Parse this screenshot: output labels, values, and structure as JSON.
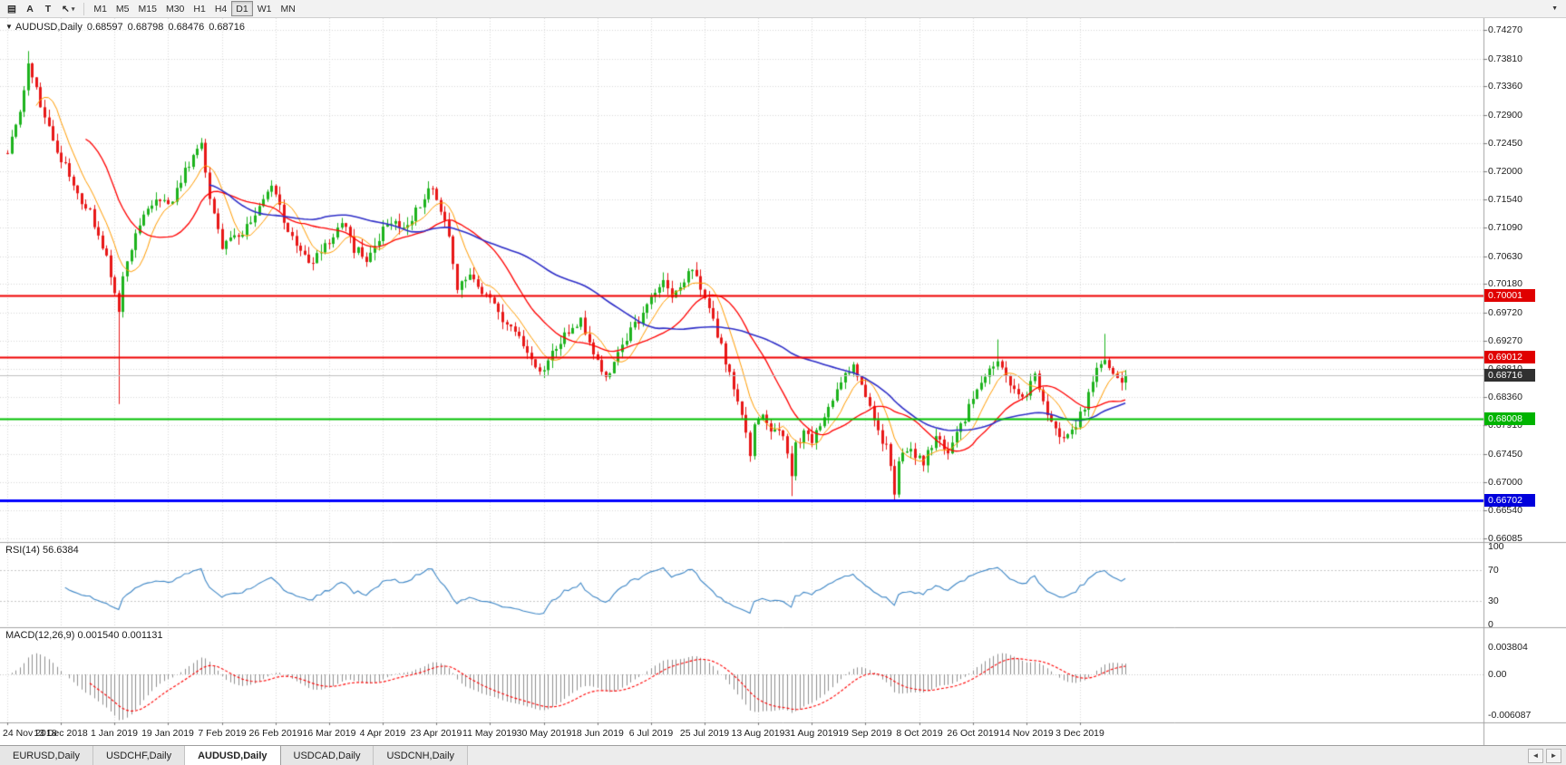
{
  "icons": {
    "symbol_dropdown": "▼",
    "caret": "▾",
    "overflow": "▼",
    "tab_scroll_left": "◄",
    "tab_scroll_right": "►"
  },
  "colors": {
    "up": "#1db31d",
    "down": "#e81717",
    "grid": "#d9d9d9",
    "ma_fast": "#ff9c00",
    "ma_mid": "#ff0000",
    "ma_slow": "#2e2ec8",
    "rsi_line": "#3d86c6",
    "rsi_level": "#c8c8c8",
    "macd_hist": "#8f8f8f",
    "macd_signal": "#ff0000",
    "axis_border": "#a3a3a3",
    "level_red": "#f00000",
    "level_green": "#00c000",
    "level_blue": "#0000ff",
    "current_price_line": "#c0c0c0"
  },
  "toolbar": {
    "tool_buttons": [
      {
        "name": "charts-list-button",
        "icon": "charts-list-icon",
        "glyph": "▤"
      },
      {
        "name": "text-annotation-button",
        "icon": "letter-a-icon",
        "glyph": "A"
      },
      {
        "name": "text-label-button",
        "icon": "letter-t-icon",
        "glyph": "T"
      },
      {
        "name": "cursor-tool-button",
        "icon": "cursor-icon",
        "glyph": "↖",
        "caret": true
      }
    ],
    "timeframes": [
      {
        "label": "M1",
        "active": false
      },
      {
        "label": "M5",
        "active": false
      },
      {
        "label": "M15",
        "active": false
      },
      {
        "label": "M30",
        "active": false
      },
      {
        "label": "H1",
        "active": false
      },
      {
        "label": "H4",
        "active": false
      },
      {
        "label": "D1",
        "active": true
      },
      {
        "label": "W1",
        "active": false
      },
      {
        "label": "MN",
        "active": false
      }
    ]
  },
  "chart": {
    "title": {
      "symbol": "AUDUSD,Daily",
      "open": "0.68597",
      "high": "0.68798",
      "low": "0.68476",
      "close": "0.68716"
    },
    "price_axis": [
      "0.74270",
      "0.73810",
      "0.73360",
      "0.72900",
      "0.72450",
      "0.72000",
      "0.71540",
      "0.71090",
      "0.70630",
      "0.70180",
      "0.69720",
      "0.69270",
      "0.68810",
      "0.68360",
      "0.67910",
      "0.67450",
      "0.67000",
      "0.66540",
      "0.66085"
    ],
    "date_axis": [
      "24 Nov 2018",
      "13 Dec 2018",
      "1 Jan 2019",
      "19 Jan 2019",
      "7 Feb 2019",
      "26 Feb 2019",
      "16 Mar 2019",
      "4 Apr 2019",
      "23 Apr 2019",
      "11 May 2019",
      "30 May 2019",
      "18 Jun 2019",
      "6 Jul 2019",
      "25 Jul 2019",
      "13 Aug 2019",
      "31 Aug 2019",
      "19 Sep 2019",
      "8 Oct 2019",
      "26 Oct 2019",
      "14 Nov 2019",
      "3 Dec 2019"
    ],
    "price_tags": [
      {
        "text": "0.70001",
        "bg": "#e00000",
        "name": "resistance-line-tag-1"
      },
      {
        "text": "0.69012",
        "bg": "#e00000",
        "name": "resistance-line-tag-2"
      },
      {
        "text": "0.68008",
        "bg": "#00b400",
        "name": "support-line-tag"
      },
      {
        "text": "0.66702",
        "bg": "#0000dc",
        "name": "key-low-line-tag"
      },
      {
        "text": "0.68716",
        "bg": "#303030",
        "name": "current-price-tag"
      }
    ],
    "hlines": [
      {
        "price": "0.70001",
        "color": "level_red",
        "width": 2
      },
      {
        "price": "0.69012",
        "color": "level_red",
        "width": 2
      },
      {
        "price": "0.68008",
        "color": "level_green",
        "width": 2
      },
      {
        "price": "0.66702",
        "color": "level_blue",
        "width": 3
      },
      {
        "price": "0.68716",
        "color": "current_price_line",
        "width": 1
      }
    ]
  },
  "indicators": {
    "rsi": {
      "label": "RSI(14) 56.6384",
      "current": 56.6384,
      "axis": [
        "100",
        "70",
        "30",
        "0"
      ],
      "levels": [
        70,
        30
      ]
    },
    "macd": {
      "label": "MACD(12,26,9) 0.001540 0.001131",
      "current_main": 0.00154,
      "current_signal": 0.001131,
      "axis": [
        "0.003804",
        "0.00",
        "-0.006087"
      ]
    }
  },
  "tabs": {
    "items": [
      {
        "label": "EURUSD,Daily",
        "active": false
      },
      {
        "label": "USDCHF,Daily",
        "active": false
      },
      {
        "label": "AUDUSD,Daily",
        "active": true
      },
      {
        "label": "USDCAD,Daily",
        "active": false
      },
      {
        "label": "USDCNH,Daily",
        "active": false
      }
    ]
  },
  "chart_data": {
    "type": "candlestick",
    "symbol": "AUDUSD",
    "timeframe": "Daily",
    "x_range": [
      "24 Nov 2018",
      "mid Dec 2019"
    ],
    "price_range_visible": [
      0.6614,
      0.7446
    ],
    "ohlc_current": {
      "open": 0.68597,
      "high": 0.68798,
      "low": 0.68476,
      "close": 0.68716
    },
    "num_candles": 272,
    "noise_seed": 11,
    "trend_points": [
      [
        0,
        0.7232
      ],
      [
        3,
        0.729
      ],
      [
        5,
        0.7375
      ],
      [
        7,
        0.733
      ],
      [
        10,
        0.7268
      ],
      [
        13,
        0.7218
      ],
      [
        17,
        0.7165
      ],
      [
        21,
        0.7118
      ],
      [
        24,
        0.7062
      ],
      [
        26,
        0.7012
      ],
      [
        27,
        0.6968
      ],
      [
        28,
        0.7022
      ],
      [
        30,
        0.7075
      ],
      [
        33,
        0.7128
      ],
      [
        36,
        0.7152
      ],
      [
        39,
        0.7148
      ],
      [
        42,
        0.7183
      ],
      [
        45,
        0.7228
      ],
      [
        47,
        0.7243
      ],
      [
        49,
        0.7152
      ],
      [
        52,
        0.7078
      ],
      [
        55,
        0.7088
      ],
      [
        58,
        0.7112
      ],
      [
        61,
        0.715
      ],
      [
        64,
        0.7183
      ],
      [
        67,
        0.7122
      ],
      [
        70,
        0.7078
      ],
      [
        73,
        0.7052
      ],
      [
        76,
        0.7066
      ],
      [
        78,
        0.7086
      ],
      [
        81,
        0.7114
      ],
      [
        84,
        0.7076
      ],
      [
        87,
        0.7056
      ],
      [
        89,
        0.708
      ],
      [
        91,
        0.7104
      ],
      [
        94,
        0.712
      ],
      [
        97,
        0.7106
      ],
      [
        100,
        0.7148
      ],
      [
        103,
        0.7174
      ],
      [
        105,
        0.714
      ],
      [
        107,
        0.7092
      ],
      [
        109,
        0.7016
      ],
      [
        112,
        0.703
      ],
      [
        115,
        0.7006
      ],
      [
        117,
        0.6992
      ],
      [
        120,
        0.6956
      ],
      [
        123,
        0.6936
      ],
      [
        126,
        0.6906
      ],
      [
        129,
        0.6876
      ],
      [
        131,
        0.69
      ],
      [
        134,
        0.6924
      ],
      [
        137,
        0.695
      ],
      [
        139,
        0.696
      ],
      [
        141,
        0.6926
      ],
      [
        143,
        0.6896
      ],
      [
        145,
        0.6868
      ],
      [
        147,
        0.6896
      ],
      [
        150,
        0.693
      ],
      [
        153,
        0.696
      ],
      [
        156,
        0.6994
      ],
      [
        159,
        0.7028
      ],
      [
        161,
        0.6996
      ],
      [
        163,
        0.7014
      ],
      [
        165,
        0.7044
      ],
      [
        167,
        0.7022
      ],
      [
        169,
        0.6996
      ],
      [
        171,
        0.696
      ],
      [
        173,
        0.6916
      ],
      [
        175,
        0.687
      ],
      [
        177,
        0.6822
      ],
      [
        179,
        0.6776
      ],
      [
        180,
        0.6742
      ],
      [
        181,
        0.6786
      ],
      [
        183,
        0.68
      ],
      [
        185,
        0.6772
      ],
      [
        187,
        0.6786
      ],
      [
        189,
        0.6746
      ],
      [
        190,
        0.6702
      ],
      [
        191,
        0.6756
      ],
      [
        193,
        0.6776
      ],
      [
        195,
        0.6766
      ],
      [
        197,
        0.679
      ],
      [
        199,
        0.682
      ],
      [
        201,
        0.6846
      ],
      [
        203,
        0.6866
      ],
      [
        205,
        0.688
      ],
      [
        207,
        0.685
      ],
      [
        209,
        0.6816
      ],
      [
        211,
        0.678
      ],
      [
        213,
        0.6756
      ],
      [
        214,
        0.6722
      ],
      [
        215,
        0.6686
      ],
      [
        216,
        0.6726
      ],
      [
        218,
        0.6756
      ],
      [
        220,
        0.6746
      ],
      [
        222,
        0.6732
      ],
      [
        224,
        0.676
      ],
      [
        226,
        0.677
      ],
      [
        228,
        0.6746
      ],
      [
        230,
        0.6776
      ],
      [
        232,
        0.68
      ],
      [
        234,
        0.684
      ],
      [
        236,
        0.6856
      ],
      [
        238,
        0.6876
      ],
      [
        240,
        0.6896
      ],
      [
        242,
        0.687
      ],
      [
        244,
        0.685
      ],
      [
        246,
        0.683
      ],
      [
        248,
        0.6856
      ],
      [
        249,
        0.688
      ],
      [
        250,
        0.6846
      ],
      [
        252,
        0.681
      ],
      [
        254,
        0.6786
      ],
      [
        256,
        0.677
      ],
      [
        258,
        0.6786
      ],
      [
        260,
        0.6806
      ],
      [
        262,
        0.684
      ],
      [
        264,
        0.688
      ],
      [
        266,
        0.6902
      ],
      [
        268,
        0.6882
      ],
      [
        270,
        0.686
      ],
      [
        271,
        0.6872
      ]
    ],
    "wick_events": [
      {
        "index": 5,
        "high": 0.7393
      },
      {
        "index": 27,
        "low": 0.6825
      },
      {
        "index": 190,
        "low": 0.6677
      },
      {
        "index": 215,
        "low": 0.667
      },
      {
        "index": 240,
        "high": 0.6929
      },
      {
        "index": 266,
        "high": 0.6938
      }
    ],
    "moving_averages": [
      {
        "period": 8,
        "color_key": "ma_fast"
      },
      {
        "period": 20,
        "color_key": "ma_mid"
      },
      {
        "period": 50,
        "color_key": "ma_slow"
      }
    ],
    "horizontal_levels": [
      0.70001,
      0.69012,
      0.68008,
      0.66702
    ],
    "indicators": [
      {
        "type": "RSI",
        "period": 14,
        "current": 56.6384
      },
      {
        "type": "MACD",
        "fast": 12,
        "slow": 26,
        "signal": 9,
        "current_main": 0.00154,
        "current_signal": 0.001131
      }
    ]
  }
}
